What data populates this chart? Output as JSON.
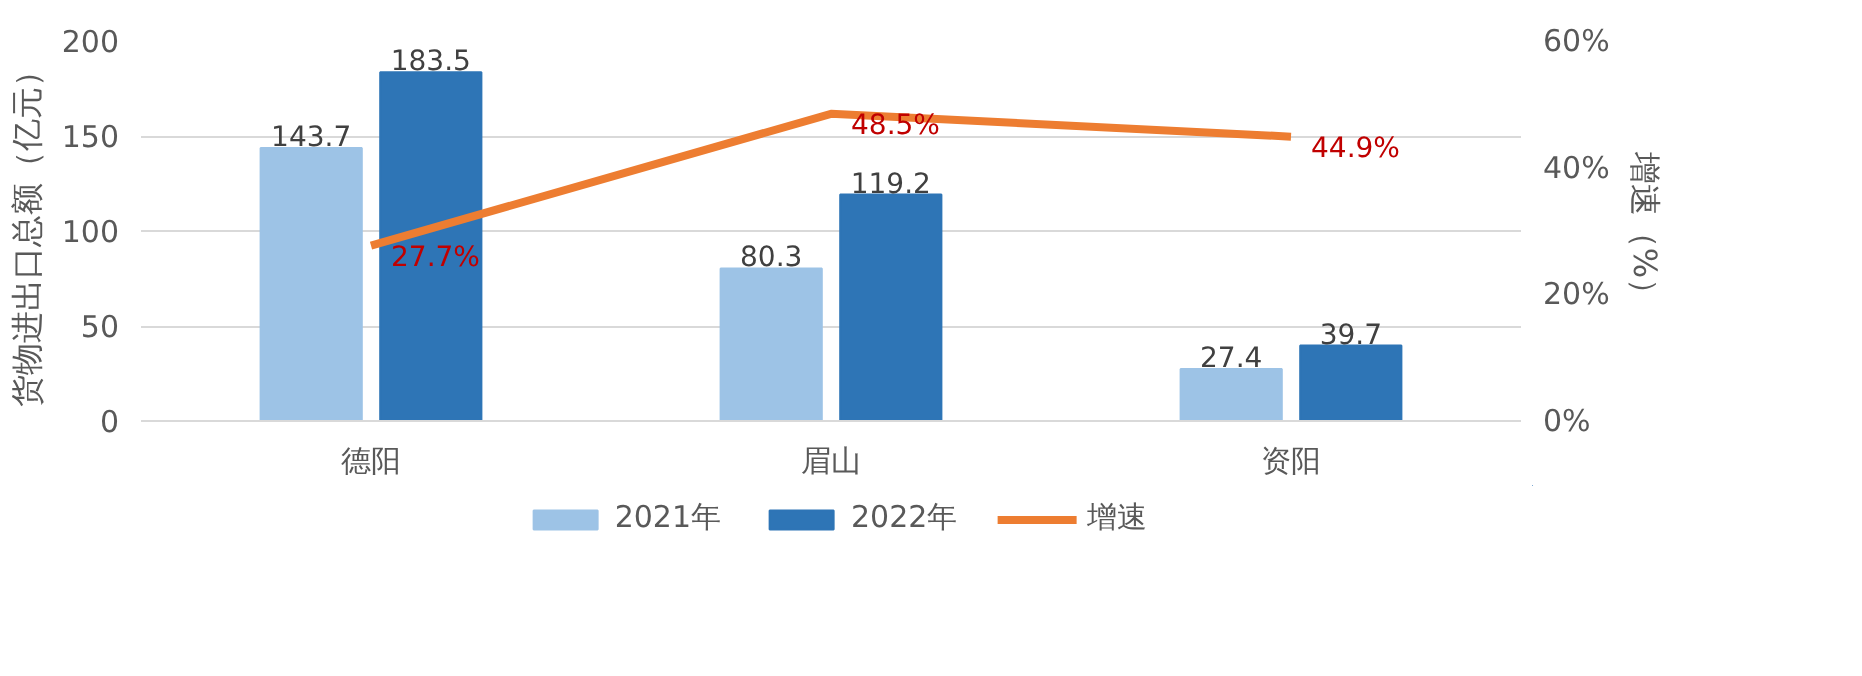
{
  "chart_data": {
    "type": "bar",
    "categories": [
      "德阳",
      "眉山",
      "资阳"
    ],
    "ylabel": "货物进出口总额（亿元）",
    "y2label": "增速（%）",
    "ylim": [
      0,
      200
    ],
    "yticks": [
      0,
      50,
      100,
      150,
      200
    ],
    "y2lim": [
      0,
      60
    ],
    "y2ticks": [
      {
        "value": 0,
        "label": "0%"
      },
      {
        "value": 20,
        "label": "20%"
      },
      {
        "value": 40,
        "label": "40%"
      },
      {
        "value": 60,
        "label": "60%"
      }
    ],
    "grid": "y",
    "legend": "bottom",
    "series": [
      {
        "name": "2021年",
        "color": "#9dc3e6",
        "values": [
          143.7,
          80.3,
          27.4
        ],
        "value_labels": [
          "143.7",
          "80.3",
          "27.4"
        ]
      },
      {
        "name": "2022年",
        "color": "#2e75b6",
        "values": [
          183.5,
          119.2,
          39.7
        ],
        "value_labels": [
          "183.5",
          "119.2",
          "39.7"
        ]
      },
      {
        "name": "增速",
        "type": "line",
        "axis": "y2",
        "color": "#ed7d31",
        "values": [
          27.7,
          48.5,
          44.9
        ],
        "value_labels": [
          "27.7%",
          "48.5%",
          "44.9%"
        ]
      }
    ]
  }
}
